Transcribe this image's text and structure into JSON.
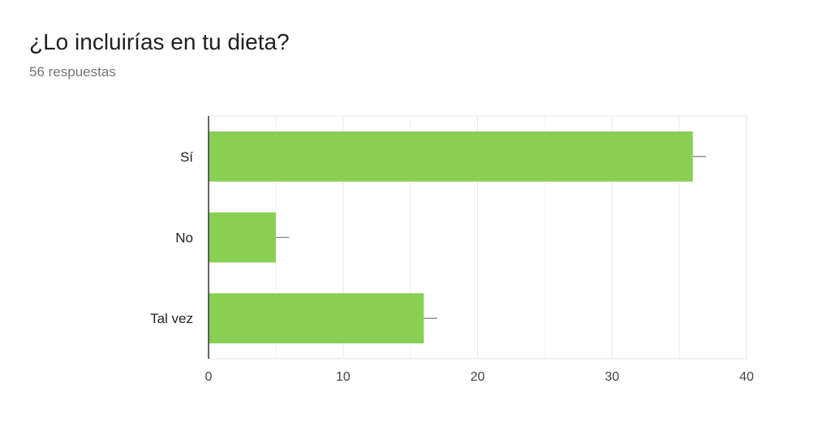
{
  "title": "¿Lo incluirías en tu dieta?",
  "subtitle": "56 respuestas",
  "chart_data": {
    "type": "bar",
    "orientation": "horizontal",
    "categories": [
      "Sí",
      "No",
      "Tal vez"
    ],
    "values": [
      36,
      5,
      16
    ],
    "error_caps": [
      37,
      6,
      17
    ],
    "xlim": [
      0,
      40
    ],
    "xticks": [
      0,
      10,
      20,
      30,
      40
    ],
    "grid": true,
    "bar_color": "#88cf54",
    "grid_color": "#e6e6e6",
    "axis_color": "#333333",
    "errorbar_color": "#888888"
  }
}
